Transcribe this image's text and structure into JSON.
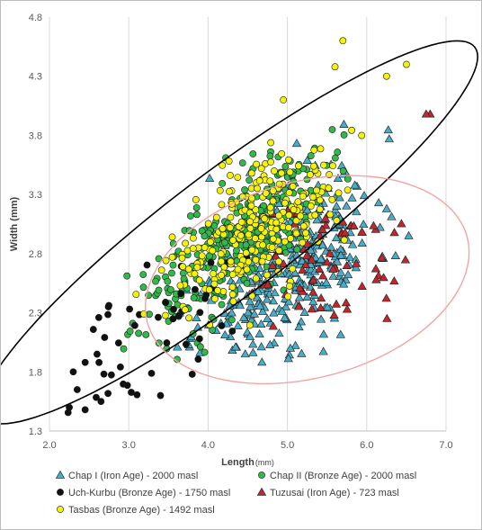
{
  "chart_data": {
    "type": "scatter",
    "xlabel": "Length",
    "xlabel_unit": "(mm)",
    "ylabel": "Width (mm)",
    "xlim": [
      2.0,
      7.0
    ],
    "ylim": [
      1.3,
      4.8
    ],
    "x_ticks": [
      "2.0",
      "3.0",
      "4.0",
      "5.0",
      "6.0",
      "7.0"
    ],
    "y_ticks": [
      "1.3",
      "1.8",
      "2.3",
      "2.8",
      "3.3",
      "3.8",
      "4.3",
      "4.8"
    ],
    "grid": "vertical",
    "legend_position": "bottom",
    "series": [
      {
        "name": "Chap I (Iron Age) - 2000 masl",
        "marker": "triangle",
        "color": "#4bacc6",
        "generated_points": {
          "count": 400,
          "x_mean": 5.0,
          "x_sd": 0.55,
          "y_mean": 2.72,
          "y_sd": 0.4,
          "corr": 0.45,
          "x_range": [
            3.6,
            6.8
          ],
          "y_range": [
            1.85,
            4.1
          ],
          "seed": 11
        }
      },
      {
        "name": "Chap II (Bronze Age) - 2000 masl",
        "marker": "circle",
        "color": "#33b84a",
        "generated_points": {
          "count": 300,
          "x_mean": 4.25,
          "x_sd": 0.6,
          "y_mean": 2.85,
          "y_sd": 0.38,
          "corr": 0.75,
          "x_range": [
            2.8,
            6.4
          ],
          "y_range": [
            1.75,
            4.3
          ],
          "seed": 23
        }
      },
      {
        "name": "Uch-Kurbu (Bronze Age) - 1750 masl",
        "marker": "circle",
        "color": "#111111",
        "generated_points": {
          "count": 45,
          "x_mean": 3.35,
          "x_sd": 0.55,
          "y_mean": 2.15,
          "y_sd": 0.35,
          "corr": 0.7,
          "x_range": [
            2.2,
            4.5
          ],
          "y_range": [
            1.45,
            2.9
          ],
          "seed": 37
        },
        "points": [
          [
            2.25,
            1.5
          ],
          [
            2.45,
            1.48
          ],
          [
            2.65,
            1.55
          ],
          [
            2.35,
            1.65
          ],
          [
            2.3,
            1.8
          ],
          [
            3.4,
            1.6
          ],
          [
            3.8,
            1.78
          ],
          [
            2.45,
            1.88
          ],
          [
            2.6,
            1.95
          ]
        ]
      },
      {
        "name": "Tuzusai (Iron Age) - 723 masl",
        "marker": "triangle",
        "color": "#c0282d",
        "generated_points": {
          "count": 70,
          "x_mean": 5.4,
          "x_sd": 0.55,
          "y_mean": 2.7,
          "y_sd": 0.3,
          "corr": 0.3,
          "x_range": [
            3.9,
            6.8
          ],
          "y_range": [
            2.0,
            4.0
          ],
          "seed": 51
        },
        "points": [
          [
            6.8,
            3.98
          ],
          [
            6.75,
            3.98
          ]
        ]
      },
      {
        "name": "Tasbas (Bronze Age) - 1492 masl",
        "marker": "circle",
        "color": "#f2f20a",
        "generated_points": {
          "count": 260,
          "x_mean": 4.55,
          "x_sd": 0.5,
          "y_mean": 2.95,
          "y_sd": 0.33,
          "corr": 0.55,
          "x_range": [
            3.0,
            6.2
          ],
          "y_range": [
            2.05,
            4.0
          ],
          "seed": 67
        },
        "points": [
          [
            5.7,
            4.6
          ],
          [
            6.5,
            4.4
          ],
          [
            6.25,
            4.3
          ],
          [
            5.6,
            4.38
          ],
          [
            4.95,
            4.1
          ]
        ]
      }
    ],
    "confidence_ellipses": [
      {
        "color": "#000000",
        "center": [
          4.27,
          2.98
        ],
        "semi_axes": [
          2.6,
          0.52
        ],
        "angle_deg": 37
      },
      {
        "color": "#f4a3a3",
        "center": [
          5.25,
          2.58
        ],
        "semi_axes": [
          1.4,
          0.83
        ],
        "angle_deg": 15
      }
    ]
  }
}
